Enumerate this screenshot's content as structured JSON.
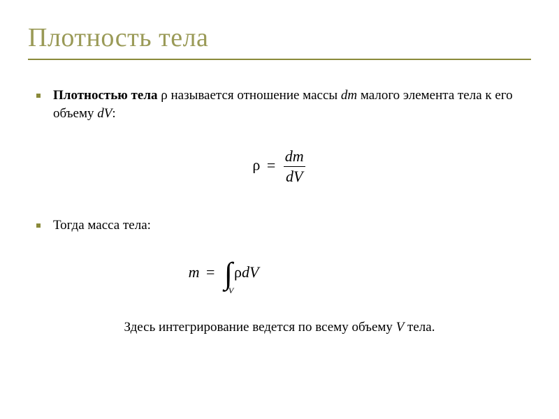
{
  "colors": {
    "accent": "#8a8a3a",
    "title": "#9a9a57",
    "text": "#000000",
    "background": "#ffffff"
  },
  "typography": {
    "title_fontsize": 38,
    "body_fontsize": 19,
    "formula_fontsize": 22,
    "font_family": "Times New Roman"
  },
  "title": "Плотность тела",
  "bullets": {
    "def_bold": "Плотностью тела",
    "def_rest_1": " ρ называется отношение массы ",
    "def_dm": "dm",
    "def_rest_2": " малого элемента тела к его объему ",
    "def_dV": "dV",
    "def_colon": ":",
    "mass_label": "Тогда масса тела:"
  },
  "formulas": {
    "rho": "ρ",
    "eq": "=",
    "dm": "dm",
    "dV": "dV",
    "m": "m",
    "integral_sub": "V",
    "integrand": "ρdV"
  },
  "closing": {
    "part1": "Здесь интегрирование ведется по всему объему ",
    "V": "V",
    "part2": " тела."
  }
}
